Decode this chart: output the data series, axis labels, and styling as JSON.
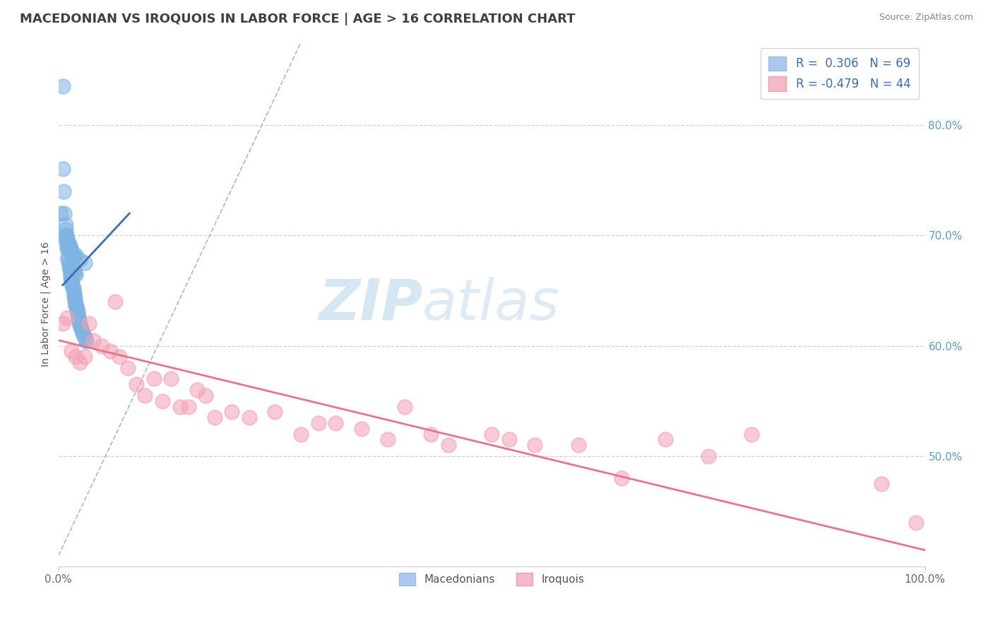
{
  "title": "MACEDONIAN VS IROQUOIS IN LABOR FORCE | AGE > 16 CORRELATION CHART",
  "source": "Source: ZipAtlas.com",
  "ylabel": "In Labor Force | Age > 16",
  "xlim": [
    0.0,
    1.0
  ],
  "ylim": [
    0.4,
    0.875
  ],
  "yticks": [
    0.5,
    0.6,
    0.7,
    0.8
  ],
  "ytick_labels": [
    "50.0%",
    "60.0%",
    "70.0%",
    "80.0%"
  ],
  "xticks": [
    0.0,
    1.0
  ],
  "xtick_labels": [
    "0.0%",
    "100.0%"
  ],
  "macedonian_R": 0.306,
  "macedonian_N": 69,
  "iroquois_R": -0.479,
  "iroquois_N": 44,
  "macedonian_color": "#7eb4e2",
  "iroquois_color": "#f4a0b5",
  "macedonian_line_color": "#3a6db5",
  "iroquois_line_color": "#e8748a",
  "legend_mac_color": "#adc8ee",
  "legend_iro_color": "#f4b8c8",
  "background_color": "#ffffff",
  "grid_color": "#cccccc",
  "title_fontsize": 13,
  "axis_fontsize": 10,
  "tick_fontsize": 11,
  "macedonian_x": [
    0.005,
    0.005,
    0.006,
    0.007,
    0.008,
    0.008,
    0.009,
    0.01,
    0.01,
    0.011,
    0.011,
    0.012,
    0.012,
    0.013,
    0.013,
    0.014,
    0.014,
    0.015,
    0.015,
    0.016,
    0.016,
    0.017,
    0.017,
    0.018,
    0.018,
    0.019,
    0.019,
    0.02,
    0.02,
    0.021,
    0.021,
    0.022,
    0.022,
    0.023,
    0.023,
    0.024,
    0.025,
    0.025,
    0.026,
    0.027,
    0.028,
    0.029,
    0.03,
    0.031,
    0.032,
    0.008,
    0.009,
    0.01,
    0.011,
    0.012,
    0.013,
    0.014,
    0.015,
    0.016,
    0.017,
    0.018,
    0.016,
    0.017,
    0.018,
    0.019,
    0.02,
    0.008,
    0.01,
    0.012,
    0.015,
    0.02,
    0.025,
    0.03,
    0.003
  ],
  "macedonian_y": [
    0.835,
    0.76,
    0.74,
    0.72,
    0.71,
    0.705,
    0.7,
    0.695,
    0.688,
    0.68,
    0.678,
    0.675,
    0.672,
    0.67,
    0.668,
    0.665,
    0.662,
    0.66,
    0.658,
    0.656,
    0.654,
    0.652,
    0.65,
    0.648,
    0.645,
    0.643,
    0.64,
    0.638,
    0.636,
    0.634,
    0.632,
    0.63,
    0.628,
    0.626,
    0.624,
    0.622,
    0.62,
    0.618,
    0.616,
    0.614,
    0.612,
    0.61,
    0.608,
    0.606,
    0.604,
    0.7,
    0.698,
    0.696,
    0.694,
    0.692,
    0.69,
    0.688,
    0.686,
    0.684,
    0.682,
    0.68,
    0.672,
    0.67,
    0.668,
    0.666,
    0.664,
    0.695,
    0.69,
    0.688,
    0.685,
    0.682,
    0.678,
    0.675,
    0.72
  ],
  "iroquois_x": [
    0.005,
    0.01,
    0.015,
    0.02,
    0.025,
    0.03,
    0.035,
    0.04,
    0.05,
    0.06,
    0.065,
    0.07,
    0.08,
    0.09,
    0.1,
    0.11,
    0.12,
    0.13,
    0.14,
    0.15,
    0.16,
    0.17,
    0.18,
    0.2,
    0.22,
    0.25,
    0.28,
    0.3,
    0.32,
    0.35,
    0.38,
    0.4,
    0.43,
    0.45,
    0.5,
    0.52,
    0.55,
    0.6,
    0.65,
    0.7,
    0.75,
    0.8,
    0.95,
    0.99
  ],
  "iroquois_y": [
    0.62,
    0.625,
    0.595,
    0.59,
    0.585,
    0.59,
    0.62,
    0.605,
    0.6,
    0.595,
    0.64,
    0.59,
    0.58,
    0.565,
    0.555,
    0.57,
    0.55,
    0.57,
    0.545,
    0.545,
    0.56,
    0.555,
    0.535,
    0.54,
    0.535,
    0.54,
    0.52,
    0.53,
    0.53,
    0.525,
    0.515,
    0.545,
    0.52,
    0.51,
    0.52,
    0.515,
    0.51,
    0.51,
    0.48,
    0.515,
    0.5,
    0.52,
    0.475,
    0.44
  ],
  "mac_trend_x0": 0.005,
  "mac_trend_x1": 0.082,
  "mac_trend_y0": 0.655,
  "mac_trend_y1": 0.72,
  "iro_trend_x0": 0.0,
  "iro_trend_x1": 1.0,
  "iro_trend_y0": 0.605,
  "iro_trend_y1": 0.415
}
